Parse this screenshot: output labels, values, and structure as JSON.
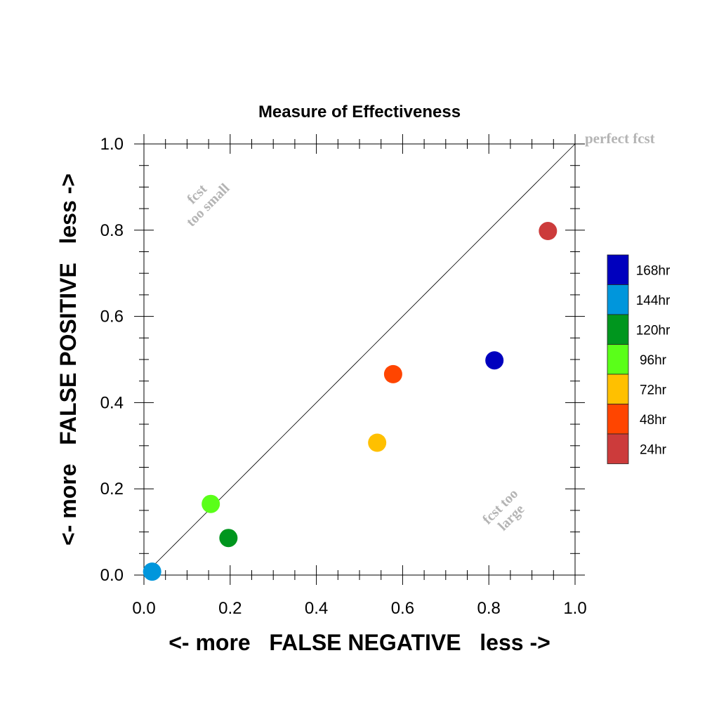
{
  "chart_data": {
    "type": "scatter",
    "title": "Measure of Effectiveness",
    "xlabel": "<- more   FALSE NEGATIVE   less ->",
    "ylabel": "<- more   FALSE POSITIVE   less ->",
    "xlim": [
      0.0,
      1.0
    ],
    "ylim": [
      0.0,
      1.0
    ],
    "x_ticks": [
      "0.0",
      "0.2",
      "0.4",
      "0.6",
      "0.8",
      "1.0"
    ],
    "y_ticks": [
      "0.0",
      "0.2",
      "0.4",
      "0.6",
      "0.8",
      "1.0"
    ],
    "diagonal_line": true,
    "grid": false,
    "legend_position": "right",
    "annotations": {
      "perfect": "perfect fcst",
      "too_small": [
        "fcst",
        "too small"
      ],
      "too_large": [
        "fcst too",
        "large"
      ]
    },
    "annotation_color": "#b4b4b4",
    "series": [
      {
        "name": "24hr",
        "color": "#cc3b3b",
        "x": 0.937,
        "y": 0.798
      },
      {
        "name": "48hr",
        "color": "#ff4500",
        "x": 0.578,
        "y": 0.466
      },
      {
        "name": "72hr",
        "color": "#ffc000",
        "x": 0.541,
        "y": 0.307
      },
      {
        "name": "96hr",
        "color": "#5aff19",
        "x": 0.155,
        "y": 0.165
      },
      {
        "name": "120hr",
        "color": "#00961e",
        "x": 0.196,
        "y": 0.086
      },
      {
        "name": "144hr",
        "color": "#0096dc",
        "x": 0.019,
        "y": 0.008
      },
      {
        "name": "168hr",
        "color": "#0000be",
        "x": 0.813,
        "y": 0.498
      }
    ],
    "legend_order": [
      "168hr",
      "144hr",
      "120hr",
      "96hr",
      "72hr",
      "48hr",
      "24hr"
    ]
  }
}
